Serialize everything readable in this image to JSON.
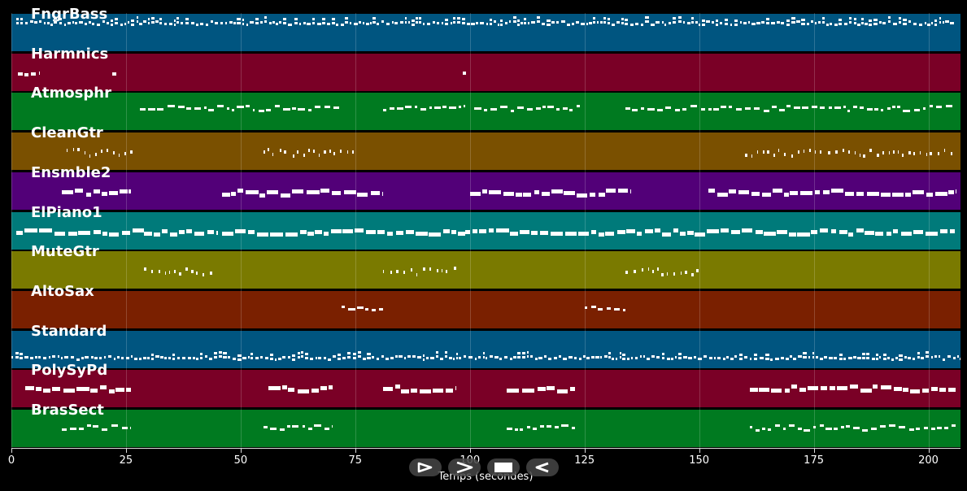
{
  "timeline": {
    "xlabel": "Temps (secondes)",
    "x_range": [
      0,
      207
    ],
    "ticks": [
      "0",
      "25",
      "50",
      "75",
      "100",
      "125",
      "150",
      "175",
      "200"
    ]
  },
  "tracks": [
    {
      "name": "FngrBass",
      "color": "#005580",
      "level": 0.22,
      "density": "dense",
      "segments": [
        [
          1,
          206
        ]
      ]
    },
    {
      "name": "Harmnics",
      "color": "#7a0026",
      "level": 0.5,
      "density": "sparse",
      "segments": [
        [
          1.5,
          6
        ],
        [
          22,
          23
        ],
        [
          98.5,
          99.5
        ]
      ]
    },
    {
      "name": "Atmosphr",
      "color": "#007a20",
      "level": 0.38,
      "density": "medium",
      "segments": [
        [
          28,
          53
        ],
        [
          54,
          72
        ],
        [
          81,
          99
        ],
        [
          101,
          124
        ],
        [
          134,
          153
        ],
        [
          153,
          206
        ]
      ]
    },
    {
      "name": "CleanGtr",
      "color": "#7a5000",
      "level": 0.5,
      "density": "light",
      "segments": [
        [
          12,
          27
        ],
        [
          55,
          76
        ],
        [
          160,
          206
        ]
      ]
    },
    {
      "name": "Ensmble2",
      "color": "#520078",
      "level": 0.5,
      "density": "bold",
      "segments": [
        [
          11,
          26
        ],
        [
          46,
          81
        ],
        [
          100,
          135
        ],
        [
          152,
          206
        ]
      ]
    },
    {
      "name": "ElPiano1",
      "color": "#007a7a",
      "level": 0.5,
      "density": "bold",
      "segments": [
        [
          1,
          29
        ],
        [
          29,
          45
        ],
        [
          46,
          99
        ],
        [
          99,
          206
        ]
      ]
    },
    {
      "name": "MuteGtr",
      "color": "#7a7a00",
      "level": 0.5,
      "density": "light",
      "segments": [
        [
          29,
          44
        ],
        [
          81,
          97
        ],
        [
          134,
          150
        ]
      ]
    },
    {
      "name": "AltoSax",
      "color": "#7a2000",
      "level": 0.45,
      "density": "medium",
      "segments": [
        [
          72,
          81
        ],
        [
          125,
          134
        ]
      ]
    },
    {
      "name": "Standard",
      "color": "#005580",
      "level": 0.7,
      "density": "dense",
      "segments": [
        [
          0,
          207
        ]
      ]
    },
    {
      "name": "PolySyPd",
      "color": "#7a0026",
      "level": 0.45,
      "density": "bold",
      "segments": [
        [
          3,
          26
        ],
        [
          56,
          70
        ],
        [
          81,
          97
        ],
        [
          108,
          123
        ],
        [
          161,
          206
        ]
      ]
    },
    {
      "name": "BrasSect",
      "color": "#007a20",
      "level": 0.45,
      "density": "medium",
      "segments": [
        [
          11,
          26
        ],
        [
          55,
          70
        ],
        [
          108,
          123
        ],
        [
          161,
          206
        ]
      ]
    }
  ],
  "controls": [
    {
      "id": "play",
      "icon": "play-outline-icon"
    },
    {
      "id": "forward",
      "icon": "fast-forward-icon"
    },
    {
      "id": "stop",
      "icon": "stop-icon"
    },
    {
      "id": "rewind",
      "icon": "rewind-icon"
    }
  ]
}
